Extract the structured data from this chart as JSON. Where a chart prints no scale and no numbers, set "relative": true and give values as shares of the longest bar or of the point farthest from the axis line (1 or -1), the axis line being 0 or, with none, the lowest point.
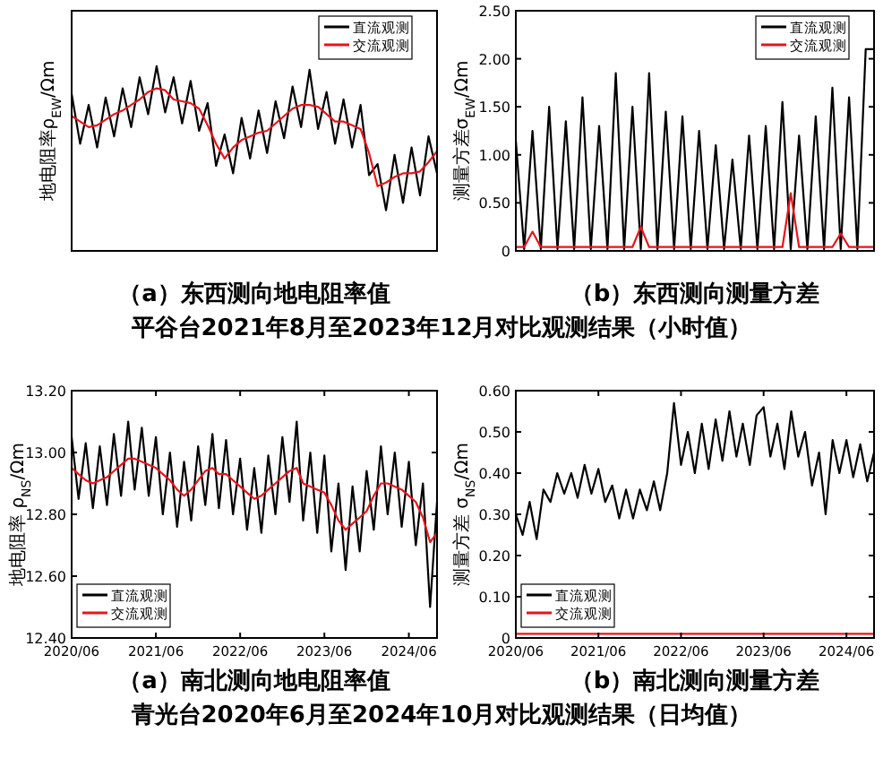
{
  "chart_data": [
    {
      "type": "line",
      "title": "（a）东西测向地电阻率值",
      "subtitle": "平谷台2021年8月至2023年12月对比观测结果（小时值）",
      "ylabel": "地电阻率ρ$_{EW}$/Ωm",
      "relative": true,
      "tick_labels": false,
      "legend": "top right",
      "categories": [
        null,
        null,
        null,
        null,
        null,
        null,
        null,
        null,
        null,
        null,
        null,
        null,
        null,
        null,
        null,
        null,
        null,
        null,
        null,
        null,
        null,
        null,
        null,
        null,
        null,
        null,
        null,
        null,
        null,
        null,
        null,
        null,
        null,
        null,
        null,
        null,
        null,
        null,
        null,
        null,
        null,
        null,
        null,
        null
      ],
      "series": [
        {
          "name": "直流观测",
          "color": "#000000",
          "values": [
            0.85,
            0.58,
            0.79,
            0.56,
            0.83,
            0.62,
            0.88,
            0.67,
            0.94,
            0.74,
            1.0,
            0.75,
            0.94,
            0.69,
            0.92,
            0.65,
            0.8,
            0.46,
            0.63,
            0.42,
            0.72,
            0.5,
            0.76,
            0.53,
            0.81,
            0.61,
            0.89,
            0.67,
            0.98,
            0.66,
            0.86,
            0.58,
            0.82,
            0.56,
            0.79,
            0.41,
            0.47,
            0.22,
            0.52,
            0.26,
            0.56,
            0.3,
            0.62,
            0.42
          ]
        },
        {
          "name": "交流观测",
          "color": "#e8141b",
          "values": [
            0.73,
            0.7,
            0.67,
            0.68,
            0.71,
            0.74,
            0.76,
            0.79,
            0.82,
            0.86,
            0.88,
            0.87,
            0.82,
            0.81,
            0.8,
            0.77,
            0.68,
            0.58,
            0.5,
            0.56,
            0.6,
            0.62,
            0.64,
            0.65,
            0.69,
            0.73,
            0.77,
            0.79,
            0.79,
            0.78,
            0.74,
            0.7,
            0.7,
            0.68,
            0.66,
            0.53,
            0.35,
            0.37,
            0.4,
            0.42,
            0.42,
            0.43,
            0.48,
            0.54
          ]
        }
      ]
    },
    {
      "type": "line",
      "title": "（b）东西测向测量方差",
      "ylabel": "测量方差σ$_{EW}$/Ωm",
      "tick_labels": "y",
      "legend": "top right",
      "ylim": [
        0,
        2.5
      ],
      "yticks": [
        0,
        {
          "value": 0.5,
          "label": "0.50"
        },
        {
          "value": 1,
          "label": "1.00"
        },
        {
          "value": 1.5,
          "label": "1.50"
        },
        {
          "value": 2,
          "label": "2.00"
        },
        {
          "value": 2.5,
          "label": "2.50"
        }
      ],
      "categories": [
        null,
        null,
        null,
        null,
        null,
        null,
        null,
        null,
        null,
        null,
        null,
        null,
        null,
        null,
        null,
        null,
        null,
        null,
        null,
        null,
        null,
        null,
        null,
        null,
        null,
        null,
        null,
        null,
        null,
        null,
        null,
        null,
        null,
        null,
        null,
        null,
        null,
        null,
        null,
        null,
        null,
        null,
        null,
        null
      ],
      "series": [
        {
          "name": "直流观测",
          "color": "#000000",
          "values": [
            1.15,
            0.02,
            1.25,
            0.02,
            1.5,
            0.02,
            1.35,
            0.02,
            1.6,
            0.02,
            1.3,
            0.02,
            1.85,
            0.02,
            1.5,
            0.02,
            1.85,
            0.02,
            1.45,
            0.02,
            1.4,
            0.02,
            1.25,
            0.02,
            1.1,
            0.02,
            0.95,
            0.02,
            1.2,
            0.02,
            1.3,
            0.02,
            1.55,
            0.02,
            1.2,
            0.02,
            1.4,
            0.02,
            1.7,
            0.02,
            1.6,
            0.02,
            2.1,
            2.1
          ]
        },
        {
          "name": "交流观测",
          "color": "#e8141b",
          "values": [
            0.04,
            0.04,
            0.2,
            0.04,
            0.04,
            0.04,
            0.04,
            0.04,
            0.04,
            0.04,
            0.04,
            0.04,
            0.04,
            0.04,
            0.04,
            0.25,
            0.04,
            0.04,
            0.04,
            0.04,
            0.04,
            0.04,
            0.04,
            0.04,
            0.04,
            0.04,
            0.04,
            0.04,
            0.04,
            0.04,
            0.04,
            0.04,
            0.04,
            0.6,
            0.04,
            0.04,
            0.04,
            0.04,
            0.04,
            0.18,
            0.04,
            0.04,
            0.04,
            0.04
          ]
        }
      ]
    },
    {
      "type": "line",
      "title": "（a）南北测向地电阻率值",
      "subtitle": "青光台2020年6月至2024年10月对比观测结果（日均值）",
      "ylabel": "地电阻率 ρ$_{NS}$/Ωm",
      "legend": "bottom left",
      "ylim": [
        12.4,
        13.2
      ],
      "yticks": [
        {
          "value": 12.4,
          "label": "12.40"
        },
        {
          "value": 12.6,
          "label": "12.60"
        },
        {
          "value": 12.8,
          "label": "12.80"
        },
        {
          "value": 13.0,
          "label": "13.00"
        },
        {
          "value": 13.2,
          "label": "13.20"
        }
      ],
      "xlim": [
        "2020-06",
        "2024-10"
      ],
      "xticks": [
        {
          "value": "2020-06",
          "label": "2020/06"
        },
        {
          "value": "2021-06",
          "label": "2021/06"
        },
        {
          "value": "2022-06",
          "label": "2022/06"
        },
        {
          "value": "2023-06",
          "label": "2023/06"
        },
        {
          "value": "2024-06",
          "label": "2024/06"
        }
      ],
      "x": [
        "2020-06",
        "2020-07",
        "2020-08",
        "2020-09",
        "2020-10",
        "2020-11",
        "2020-12",
        "2021-01",
        "2021-02",
        "2021-03",
        "2021-04",
        "2021-05",
        "2021-06",
        "2021-07",
        "2021-08",
        "2021-09",
        "2021-10",
        "2021-11",
        "2021-12",
        "2022-01",
        "2022-02",
        "2022-03",
        "2022-04",
        "2022-05",
        "2022-06",
        "2022-07",
        "2022-08",
        "2022-09",
        "2022-10",
        "2022-11",
        "2022-12",
        "2023-01",
        "2023-02",
        "2023-03",
        "2023-04",
        "2023-05",
        "2023-06",
        "2023-07",
        "2023-08",
        "2023-09",
        "2023-10",
        "2023-11",
        "2023-12",
        "2024-01",
        "2024-02",
        "2024-03",
        "2024-04",
        "2024-05",
        "2024-06",
        "2024-07",
        "2024-08",
        "2024-09",
        "2024-10"
      ],
      "series": [
        {
          "name": "直流观测",
          "color": "#000000",
          "values": [
            13.05,
            12.85,
            13.03,
            12.82,
            13.02,
            12.83,
            13.06,
            12.86,
            13.1,
            12.88,
            13.08,
            12.86,
            13.05,
            12.8,
            13.0,
            12.76,
            12.97,
            12.78,
            13.02,
            12.83,
            13.06,
            12.82,
            13.04,
            12.8,
            12.98,
            12.75,
            12.95,
            12.74,
            12.99,
            12.8,
            13.05,
            12.84,
            13.1,
            12.78,
            13.0,
            12.74,
            12.99,
            12.68,
            12.9,
            12.62,
            12.89,
            12.68,
            12.94,
            12.75,
            13.02,
            12.8,
            13.0,
            12.76,
            12.97,
            12.7,
            12.9,
            12.5,
            12.84
          ]
        },
        {
          "name": "交流观测",
          "color": "#e8141b",
          "values": [
            12.95,
            12.93,
            12.91,
            12.9,
            12.91,
            12.92,
            12.94,
            12.96,
            12.98,
            12.98,
            12.97,
            12.96,
            12.95,
            12.93,
            12.91,
            12.88,
            12.86,
            12.88,
            12.91,
            12.94,
            12.95,
            12.93,
            12.93,
            12.91,
            12.89,
            12.87,
            12.85,
            12.86,
            12.88,
            12.9,
            12.92,
            12.94,
            12.95,
            12.9,
            12.89,
            12.88,
            12.87,
            12.83,
            12.78,
            12.75,
            12.77,
            12.79,
            12.81,
            12.86,
            12.9,
            12.9,
            12.89,
            12.88,
            12.86,
            12.84,
            12.79,
            12.71,
            12.74
          ]
        }
      ]
    },
    {
      "type": "line",
      "title": "（b）南北测向测量方差",
      "ylabel": "测量方差 σ$_{NS}$/Ωm",
      "legend": "bottom left",
      "ylim": [
        0,
        0.6
      ],
      "yticks": [
        0,
        {
          "value": 0.1,
          "label": "0.10"
        },
        {
          "value": 0.2,
          "label": "0.20"
        },
        {
          "value": 0.3,
          "label": "0.30"
        },
        {
          "value": 0.4,
          "label": "0.40"
        },
        {
          "value": 0.5,
          "label": "0.50"
        },
        {
          "value": 0.6,
          "label": "0.60"
        }
      ],
      "xlim": [
        "2020-06",
        "2024-10"
      ],
      "xticks": [
        {
          "value": "2020-06",
          "label": "2020/06"
        },
        {
          "value": "2021-06",
          "label": "2021/06"
        },
        {
          "value": "2022-06",
          "label": "2022/06"
        },
        {
          "value": "2023-06",
          "label": "2023/06"
        },
        {
          "value": "2024-06",
          "label": "2024/06"
        }
      ],
      "x": [
        "2020-06",
        "2020-07",
        "2020-08",
        "2020-09",
        "2020-10",
        "2020-11",
        "2020-12",
        "2021-01",
        "2021-02",
        "2021-03",
        "2021-04",
        "2021-05",
        "2021-06",
        "2021-07",
        "2021-08",
        "2021-09",
        "2021-10",
        "2021-11",
        "2021-12",
        "2022-01",
        "2022-02",
        "2022-03",
        "2022-04",
        "2022-05",
        "2022-06",
        "2022-07",
        "2022-08",
        "2022-09",
        "2022-10",
        "2022-11",
        "2022-12",
        "2023-01",
        "2023-02",
        "2023-03",
        "2023-04",
        "2023-05",
        "2023-06",
        "2023-07",
        "2023-08",
        "2023-09",
        "2023-10",
        "2023-11",
        "2023-12",
        "2024-01",
        "2024-02",
        "2024-03",
        "2024-04",
        "2024-05",
        "2024-06",
        "2024-07",
        "2024-08",
        "2024-09",
        "2024-10"
      ],
      "series": [
        {
          "name": "直流观测",
          "color": "#000000",
          "values": [
            0.3,
            0.25,
            0.33,
            0.24,
            0.36,
            0.33,
            0.4,
            0.35,
            0.4,
            0.34,
            0.42,
            0.35,
            0.41,
            0.33,
            0.37,
            0.29,
            0.36,
            0.29,
            0.36,
            0.31,
            0.38,
            0.31,
            0.4,
            0.57,
            0.42,
            0.5,
            0.4,
            0.52,
            0.41,
            0.53,
            0.43,
            0.55,
            0.44,
            0.52,
            0.42,
            0.54,
            0.56,
            0.44,
            0.52,
            0.41,
            0.55,
            0.44,
            0.5,
            0.37,
            0.45,
            0.3,
            0.48,
            0.4,
            0.48,
            0.39,
            0.47,
            0.38,
            0.45
          ]
        },
        {
          "name": "交流观测",
          "color": "#e8141b",
          "values": [
            0.01,
            0.01,
            0.01,
            0.01,
            0.01,
            0.01,
            0.01,
            0.01,
            0.01,
            0.01,
            0.01,
            0.01,
            0.01,
            0.01,
            0.01,
            0.01,
            0.01,
            0.01,
            0.01,
            0.01,
            0.01,
            0.01,
            0.01,
            0.01,
            0.01,
            0.01,
            0.01,
            0.01,
            0.01,
            0.01,
            0.01,
            0.01,
            0.01,
            0.01,
            0.01,
            0.01,
            0.01,
            0.01,
            0.01,
            0.01,
            0.01,
            0.01,
            0.01,
            0.01,
            0.01,
            0.01,
            0.01,
            0.01,
            0.01,
            0.01,
            0.01,
            0.01,
            0.01
          ]
        }
      ]
    }
  ]
}
